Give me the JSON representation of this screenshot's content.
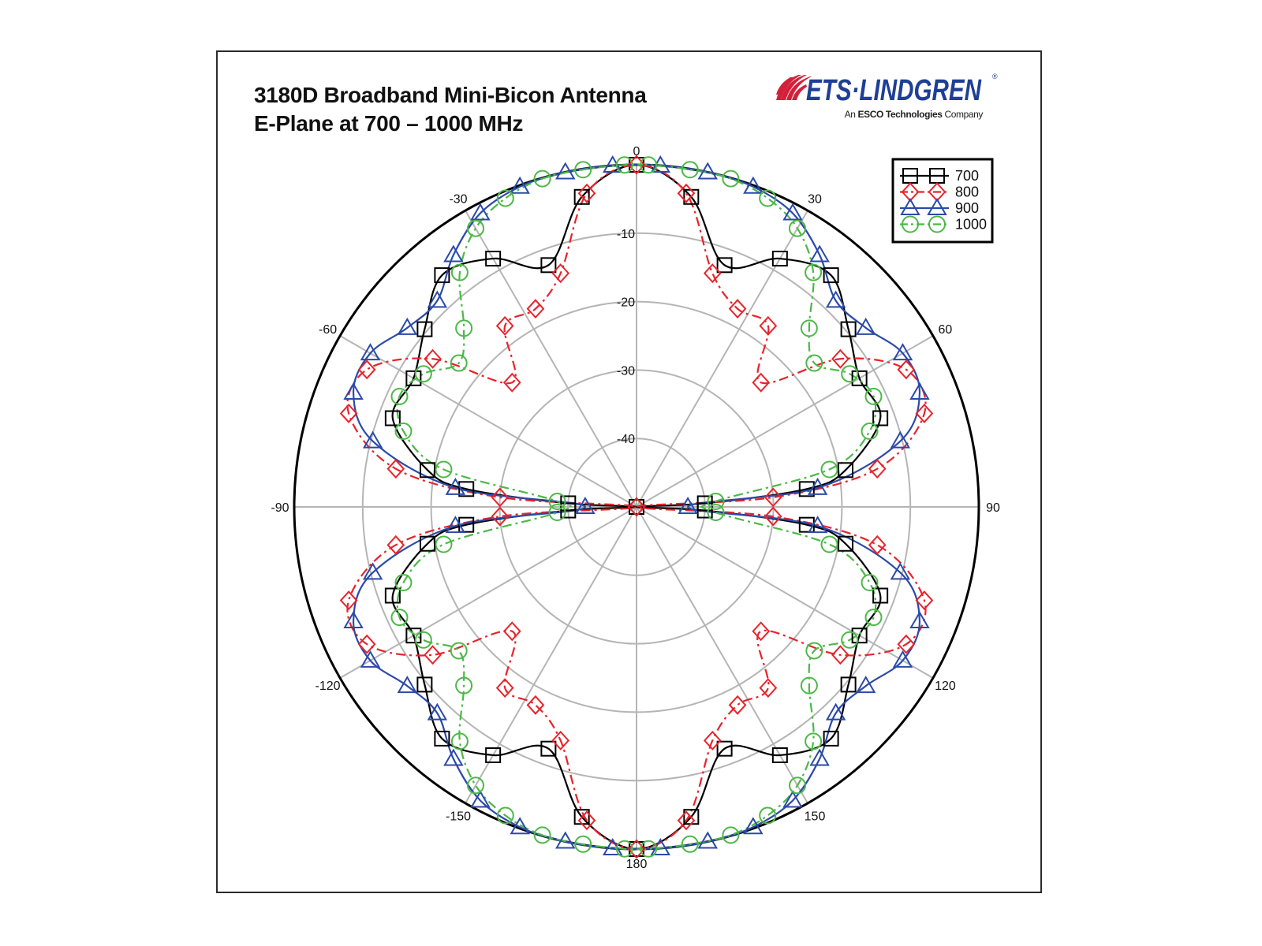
{
  "chart_data": {
    "type": "polar-line",
    "title": "3180D Broadband Mini-Bicon Antenna",
    "subtitle": "E-Plane at 700 – 1000 MHz",
    "radial_range_db": [
      -50,
      0
    ],
    "radial_ticks": [
      "-10",
      "-20",
      "-30",
      "-40"
    ],
    "angular_ticks": [
      "0",
      "30",
      "60",
      "90",
      "120",
      "150",
      "180",
      "-150",
      "-120",
      "-90",
      "-60",
      "-30"
    ],
    "angular_zero": "top",
    "angular_direction": "clockwise",
    "grid": true,
    "legend_position": "top-right",
    "series": [
      {
        "name": "700",
        "color": "#000000",
        "line": "solid",
        "marker": "square",
        "points": [
          [
            -180,
            0
          ],
          [
            -170,
            -4
          ],
          [
            -160,
            -12.4
          ],
          [
            -150,
            -8.1
          ],
          [
            -140,
            -5.8
          ],
          [
            -130,
            -9.6
          ],
          [
            -120,
            -12.4
          ],
          [
            -110,
            -12.1
          ],
          [
            -100,
            -19
          ],
          [
            -96,
            -25
          ],
          [
            -93,
            -40
          ],
          [
            -90,
            -50
          ],
          [
            -87,
            -40
          ],
          [
            -84,
            -25
          ],
          [
            -80,
            -19
          ],
          [
            -70,
            -12.1
          ],
          [
            -60,
            -12.4
          ],
          [
            -50,
            -9.6
          ],
          [
            -40,
            -5.8
          ],
          [
            -30,
            -8.1
          ],
          [
            -20,
            -12.4
          ],
          [
            -10,
            -4
          ],
          [
            0,
            0
          ],
          [
            10,
            -4
          ],
          [
            20,
            -12.4
          ],
          [
            30,
            -8.1
          ],
          [
            40,
            -5.8
          ],
          [
            50,
            -9.6
          ],
          [
            60,
            -12.4
          ],
          [
            70,
            -12.1
          ],
          [
            80,
            -19
          ],
          [
            84,
            -25
          ],
          [
            87,
            -40
          ],
          [
            90,
            -50
          ],
          [
            93,
            -40
          ],
          [
            96,
            -25
          ],
          [
            100,
            -19
          ],
          [
            110,
            -12.1
          ],
          [
            120,
            -12.4
          ],
          [
            130,
            -9.6
          ],
          [
            140,
            -5.8
          ],
          [
            150,
            -8.1
          ],
          [
            160,
            -12.4
          ],
          [
            170,
            -4
          ]
        ]
      },
      {
        "name": "800",
        "color": "#e8232a",
        "line": "dash-dot",
        "marker": "diamond",
        "points": [
          [
            -180,
            0
          ],
          [
            -171,
            -3.6
          ],
          [
            -162,
            -14.1
          ],
          [
            -153,
            -17.5
          ],
          [
            -144,
            -17.3
          ],
          [
            -135,
            -24.3
          ],
          [
            -126,
            -13.2
          ],
          [
            -117,
            -5.8
          ],
          [
            -108,
            -5.8
          ],
          [
            -99,
            -14.4
          ],
          [
            -94,
            -30
          ],
          [
            -90,
            -50
          ],
          [
            -86,
            -30
          ],
          [
            -81,
            -14.4
          ],
          [
            -72,
            -5.8
          ],
          [
            -63,
            -5.8
          ],
          [
            -54,
            -13.2
          ],
          [
            -45,
            -24.3
          ],
          [
            -36,
            -17.3
          ],
          [
            -27,
            -17.5
          ],
          [
            -18,
            -14.1
          ],
          [
            -9,
            -3.6
          ],
          [
            0,
            0
          ],
          [
            9,
            -3.6
          ],
          [
            18,
            -14.1
          ],
          [
            27,
            -17.5
          ],
          [
            36,
            -17.3
          ],
          [
            45,
            -24.3
          ],
          [
            54,
            -13.2
          ],
          [
            63,
            -5.8
          ],
          [
            72,
            -5.8
          ],
          [
            81,
            -14.4
          ],
          [
            86,
            -30
          ],
          [
            90,
            -50
          ],
          [
            94,
            -30
          ],
          [
            99,
            -14.4
          ],
          [
            108,
            -5.8
          ],
          [
            117,
            -5.8
          ],
          [
            126,
            -13.2
          ],
          [
            135,
            -24.3
          ],
          [
            144,
            -17.3
          ],
          [
            153,
            -17.5
          ],
          [
            162,
            -14.1
          ],
          [
            171,
            -3.6
          ]
        ]
      },
      {
        "name": "900",
        "color": "#2b4aa8",
        "line": "solid",
        "marker": "triangle",
        "points": [
          [
            -176,
            0
          ],
          [
            -168,
            0
          ],
          [
            -160,
            -0.2
          ],
          [
            -152,
            -1.4
          ],
          [
            -144,
            -4.5
          ],
          [
            -136,
            -8.1
          ],
          [
            -128,
            -7.5
          ],
          [
            -120,
            -5.1
          ],
          [
            -112,
            -5.4
          ],
          [
            -104,
            -10.3
          ],
          [
            -96,
            -23.4
          ],
          [
            -90,
            -42.5
          ],
          [
            -84,
            -23.4
          ],
          [
            -76,
            -10.3
          ],
          [
            -68,
            -5.4
          ],
          [
            -60,
            -5.1
          ],
          [
            -52,
            -7.5
          ],
          [
            -44,
            -8.1
          ],
          [
            -36,
            -4.5
          ],
          [
            -28,
            -1.4
          ],
          [
            -20,
            -0.2
          ],
          [
            -12,
            0
          ],
          [
            -4,
            0
          ],
          [
            4,
            0
          ],
          [
            12,
            0
          ],
          [
            20,
            -0.2
          ],
          [
            28,
            -1.4
          ],
          [
            36,
            -4.5
          ],
          [
            44,
            -8.1
          ],
          [
            52,
            -7.5
          ],
          [
            60,
            -5.1
          ],
          [
            68,
            -5.4
          ],
          [
            76,
            -10.3
          ],
          [
            84,
            -23.4
          ],
          [
            90,
            -42.5
          ],
          [
            96,
            -23.4
          ],
          [
            104,
            -10.3
          ],
          [
            112,
            -5.4
          ],
          [
            120,
            -5.1
          ],
          [
            128,
            -7.5
          ],
          [
            136,
            -8.1
          ],
          [
            144,
            -4.5
          ],
          [
            152,
            -1.4
          ],
          [
            160,
            -0.2
          ],
          [
            168,
            0
          ],
          [
            176,
            0
          ]
        ]
      },
      {
        "name": "1000",
        "color": "#4cb847",
        "line": "dash-dot",
        "marker": "circle",
        "points": [
          [
            -178,
            0
          ],
          [
            -171,
            -0.1
          ],
          [
            -164,
            -0.1
          ],
          [
            -157,
            -1
          ],
          [
            -150,
            -3
          ],
          [
            -143,
            -7.1
          ],
          [
            -136,
            -13.7
          ],
          [
            -129,
            -16.6
          ],
          [
            -122,
            -13.3
          ],
          [
            -115,
            -11.8
          ],
          [
            -108,
            -14.2
          ],
          [
            -101,
            -21.3
          ],
          [
            -94,
            -38.4
          ],
          [
            -86,
            -38.4
          ],
          [
            -79,
            -21.3
          ],
          [
            -72,
            -14.2
          ],
          [
            -65,
            -11.8
          ],
          [
            -58,
            -13.3
          ],
          [
            -51,
            -16.6
          ],
          [
            -44,
            -13.7
          ],
          [
            -37,
            -7.1
          ],
          [
            -30,
            -3
          ],
          [
            -23,
            -1
          ],
          [
            -16,
            -0.1
          ],
          [
            -9,
            -0.1
          ],
          [
            -2,
            0
          ],
          [
            2,
            0
          ],
          [
            9,
            -0.1
          ],
          [
            16,
            -0.1
          ],
          [
            23,
            -1
          ],
          [
            30,
            -3
          ],
          [
            37,
            -7.1
          ],
          [
            44,
            -13.7
          ],
          [
            51,
            -16.6
          ],
          [
            58,
            -13.3
          ],
          [
            65,
            -11.8
          ],
          [
            72,
            -14.2
          ],
          [
            79,
            -21.3
          ],
          [
            86,
            -38.4
          ],
          [
            94,
            -38.4
          ],
          [
            101,
            -21.3
          ],
          [
            108,
            -14.2
          ],
          [
            115,
            -11.8
          ],
          [
            122,
            -13.3
          ],
          [
            129,
            -16.6
          ],
          [
            136,
            -13.7
          ],
          [
            143,
            -7.1
          ],
          [
            150,
            -3
          ],
          [
            157,
            -1
          ],
          [
            164,
            -0.1
          ],
          [
            171,
            -0.1
          ],
          [
            178,
            0
          ]
        ]
      }
    ]
  },
  "logo": {
    "name": "ETS·LINDGREN",
    "tagline_prefix": "An",
    "tagline_bold": "ESCO Technologies",
    "tagline_suffix": "Company",
    "registered": "®",
    "colors": {
      "blue": "#1f3f96",
      "red": "#d4213a"
    }
  }
}
